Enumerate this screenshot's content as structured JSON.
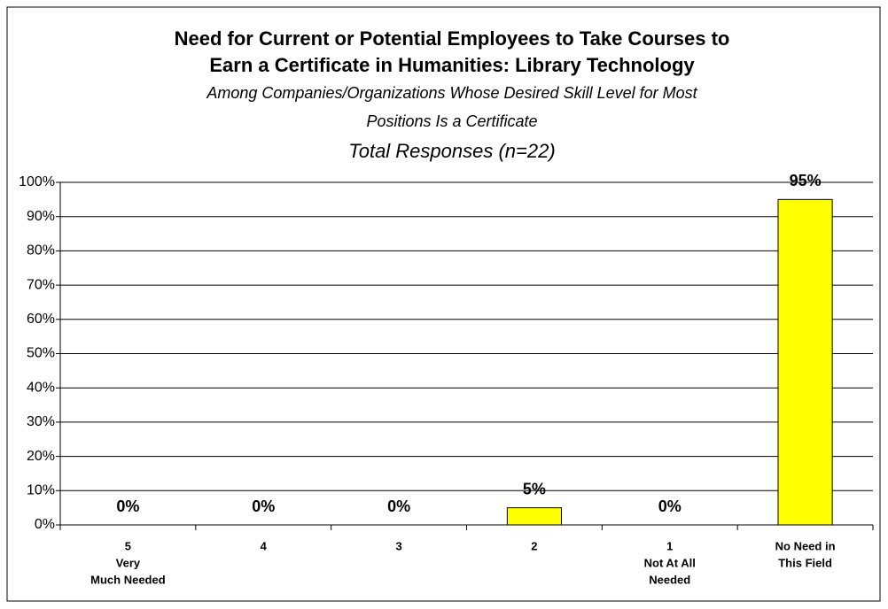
{
  "chart_data": {
    "type": "bar",
    "title": [
      "Need for Current or Potential Employees to Take Courses to",
      "Earn a Certificate in Humanities: Library Technology"
    ],
    "subtitle": [
      "Among Companies/Organizations Whose Desired Skill Level for Most",
      "Positions Is a Certificate"
    ],
    "annotation": "Total Responses (n=22)",
    "categories": [
      [
        "5",
        "Very",
        "Much Needed"
      ],
      [
        "4"
      ],
      [
        "3"
      ],
      [
        "2"
      ],
      [
        "1",
        "Not At All",
        "Needed"
      ],
      [
        "No Need in",
        "This Field"
      ]
    ],
    "values": [
      0,
      0,
      0,
      5,
      0,
      95
    ],
    "value_labels": [
      "0%",
      "0%",
      "0%",
      "5%",
      "0%",
      "95%"
    ],
    "color": "#ffff00",
    "ylim": [
      0,
      100
    ],
    "yticks": [
      {
        "value": 0,
        "label": "0%"
      },
      {
        "value": 10,
        "label": "10%"
      },
      {
        "value": 20,
        "label": "20%"
      },
      {
        "value": 30,
        "label": "30%"
      },
      {
        "value": 40,
        "label": "40%"
      },
      {
        "value": 50,
        "label": "50%"
      },
      {
        "value": 60,
        "label": "60%"
      },
      {
        "value": 70,
        "label": "70%"
      },
      {
        "value": 80,
        "label": "80%"
      },
      {
        "value": 90,
        "label": "90%"
      },
      {
        "value": 100,
        "label": "100%"
      }
    ],
    "grid": true
  }
}
